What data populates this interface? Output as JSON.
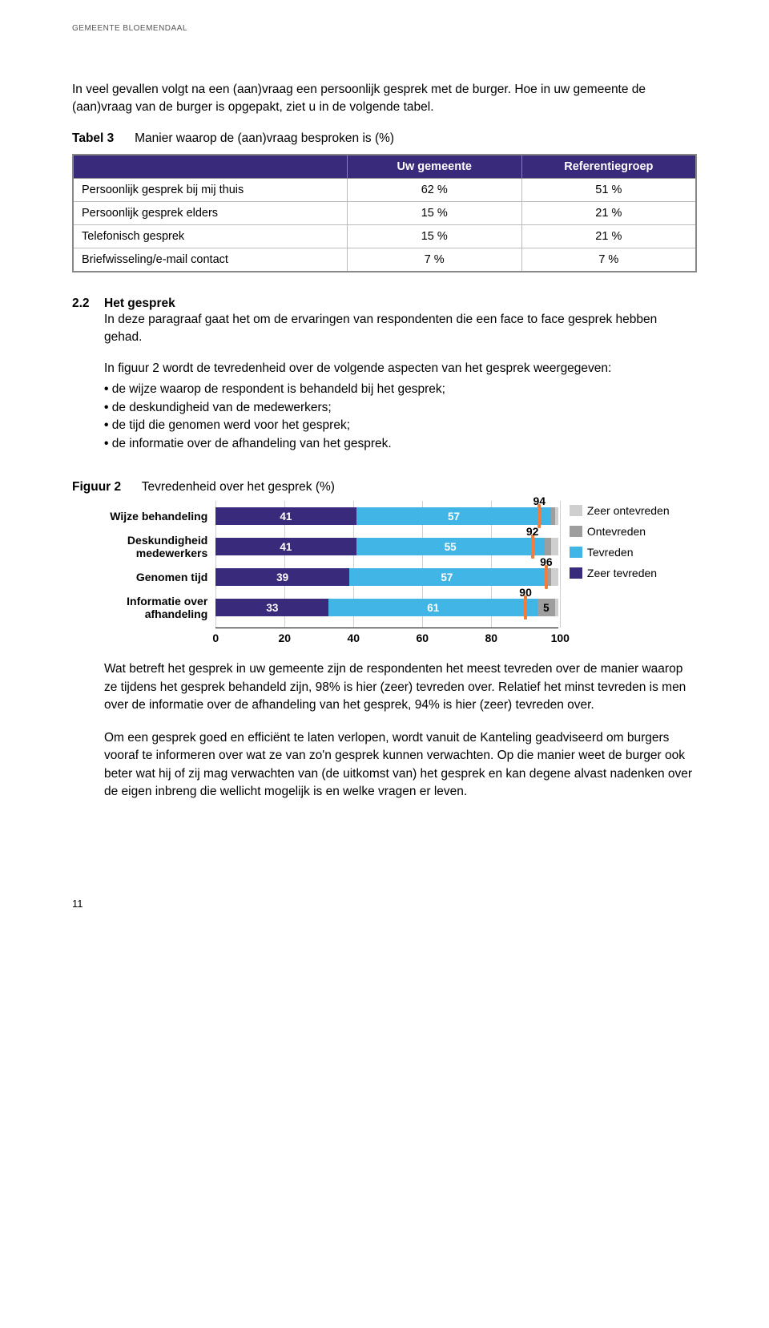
{
  "header": "GEMEENTE BLOEMENDAAL",
  "intro_para": "In veel gevallen volgt na een (aan)vraag een persoonlijk gesprek met de burger. Hoe in uw gemeente de (aan)vraag van de burger is opgepakt, ziet u in de volgende tabel.",
  "table3": {
    "label": "Tabel 3",
    "caption": "Manier waarop de (aan)vraag besproken is (%)",
    "header_bg": "#3a2a7b",
    "header_text_color": "#ffffff",
    "col1": "Uw gemeente",
    "col2": "Referentiegroep",
    "rows": [
      {
        "label": "Persoonlijk gesprek bij mij thuis",
        "v1": "62 %",
        "v2": "51 %"
      },
      {
        "label": "Persoonlijk gesprek elders",
        "v1": "15 %",
        "v2": "21 %"
      },
      {
        "label": "Telefonisch gesprek",
        "v1": "15 %",
        "v2": "21 %"
      },
      {
        "label": "Briefwisseling/e-mail contact",
        "v1": "7 %",
        "v2": "7 %"
      }
    ]
  },
  "section22": {
    "num": "2.2",
    "title": "Het gesprek",
    "para1": "In deze paragraaf gaat het om de ervaringen van respondenten die een face to face gesprek hebben gehad.",
    "para2": "In figuur 2 wordt de tevredenheid over de volgende aspecten van het gesprek weergegeven:",
    "bullets": [
      "de wijze waarop de respondent is behandeld bij het gesprek;",
      "de deskundigheid van de medewerkers;",
      "de tijd die genomen werd voor het gesprek;",
      "de informatie over de afhandeling van het gesprek."
    ]
  },
  "figure2": {
    "label": "Figuur 2",
    "caption": "Tevredenheid over het gesprek (%)",
    "xmin": 0,
    "xmax": 100,
    "xticks": [
      0,
      20,
      40,
      60,
      80,
      100
    ],
    "colors": {
      "zeer_ontevreden": "#cfcfcf",
      "ontevreden": "#9e9e9e",
      "tevreden": "#41b6e6",
      "zeer_tevreden": "#3a2a7b",
      "marker": "#f47c3c",
      "grid": "#d0d0d0",
      "axis": "#000000",
      "text": "#000000"
    },
    "legend": [
      {
        "key": "zeer_ontevreden",
        "label": "Zeer ontevreden"
      },
      {
        "key": "ontevreden",
        "label": "Ontevreden"
      },
      {
        "key": "tevreden",
        "label": "Tevreden"
      },
      {
        "key": "zeer_tevreden",
        "label": "Zeer tevreden"
      }
    ],
    "rows": [
      {
        "label": "Wijze behandeling",
        "zeer_tevreden": 41,
        "tevreden": 57,
        "ontevreden": 1,
        "zeer_ontevreden": 1,
        "marker": 94,
        "show_ont": null
      },
      {
        "label": "Deskundigheid medewerkers",
        "zeer_tevreden": 41,
        "tevreden": 55,
        "ontevreden": 2,
        "zeer_ontevreden": 2,
        "marker": 92,
        "show_ont": null
      },
      {
        "label": "Genomen tijd",
        "zeer_tevreden": 39,
        "tevreden": 57,
        "ontevreden": 2,
        "zeer_ontevreden": 2,
        "marker": 96,
        "show_ont": null
      },
      {
        "label": "Informatie over afhandeling",
        "zeer_tevreden": 33,
        "tevreden": 61,
        "ontevreden": 5,
        "zeer_ontevreden": 1,
        "marker": 90,
        "show_ont": "5"
      }
    ]
  },
  "para_after1": "Wat betreft het gesprek in uw gemeente zijn de respondenten het meest tevreden over de manier waarop ze tijdens het gesprek behandeld zijn, 98% is hier (zeer) tevreden over. Relatief het minst tevreden is men over de informatie over de afhandeling van het gesprek, 94% is hier (zeer) tevreden over.",
  "para_after2": "Om een gesprek goed en efficiënt te laten verlopen, wordt vanuit de Kanteling geadviseerd om burgers vooraf te informeren over wat ze van zo'n gesprek kunnen verwachten. Op die manier weet de burger ook beter wat hij of zij mag verwachten van (de uitkomst van) het gesprek en kan degene alvast nadenken over de eigen inbreng die wellicht mogelijk is en welke vragen er leven.",
  "page_number": "11"
}
